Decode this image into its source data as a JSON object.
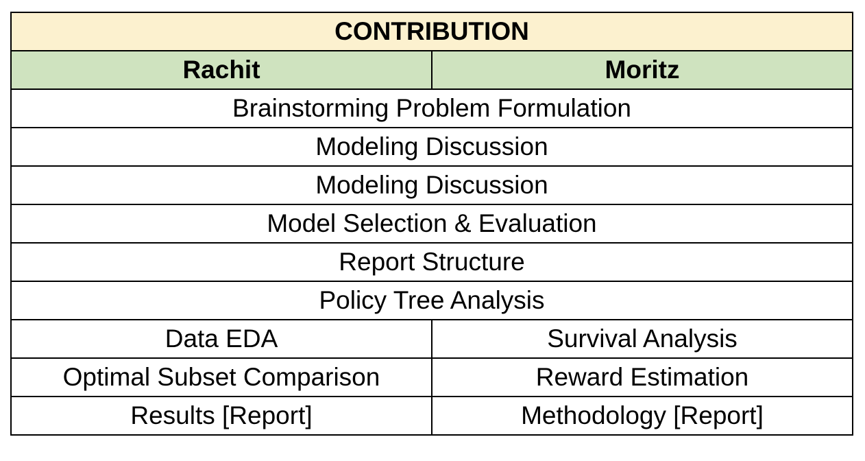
{
  "table": {
    "title": "CONTRIBUTION",
    "names": [
      "Rachit",
      "Moritz"
    ],
    "shared_rows": [
      "Brainstorming Problem Formulation",
      "Modeling Discussion",
      "Modeling Discussion",
      "Model Selection & Evaluation",
      "Report Structure",
      "Policy Tree Analysis"
    ],
    "split_rows": [
      [
        "Data EDA",
        "Survival Analysis"
      ],
      [
        "Optimal Subset Comparison",
        "Reward Estimation"
      ],
      [
        "Results [Report]",
        "Methodology [Report]"
      ]
    ]
  },
  "colors": {
    "title_bg": "#fcf1cf",
    "name_bg": "#cfe3bf",
    "border": "#000000"
  }
}
